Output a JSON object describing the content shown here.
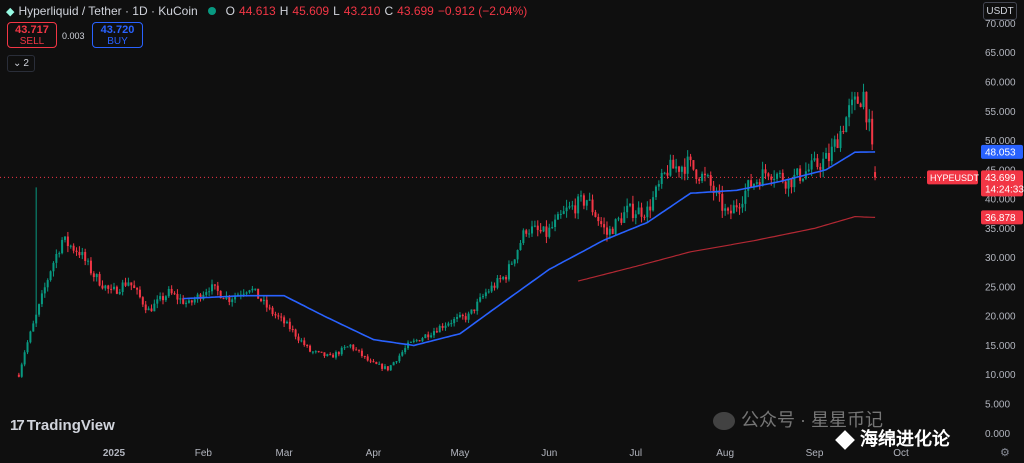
{
  "header": {
    "pair": "Hyperliquid / Tether · 1D · KuCoin",
    "open_label": "O",
    "open": "44.613",
    "high_label": "H",
    "high": "45.609",
    "low_label": "L",
    "low": "43.210",
    "close_label": "C",
    "close": "43.699",
    "change": "−0.912 (−2.04%)"
  },
  "trade": {
    "sell_price": "43.717",
    "sell_label": "SELL",
    "spread": "0.003",
    "buy_price": "43.720",
    "buy_label": "BUY"
  },
  "indicators": {
    "count": "2",
    "icon": "chevron-down-icon"
  },
  "currency": "USDT",
  "branding": {
    "logo_text": "TradingView"
  },
  "watermark": {
    "line1": "公众号 · 星星币记",
    "line2": "海绵进化论"
  },
  "colors": {
    "up": "#089981",
    "down": "#f23645",
    "ma_fast": "#2962ff",
    "ma_slow": "#b22833"
  },
  "chart_data": {
    "type": "candlestick",
    "y_ticks": [
      0,
      5,
      10,
      15,
      20,
      25,
      30,
      35,
      40,
      45,
      50,
      55,
      60,
      65,
      70
    ],
    "y_tick_labels": [
      "0.000",
      "5.000",
      "10.000",
      "15.000",
      "20.000",
      "25.000",
      "30.000",
      "35.000",
      "40.000",
      "45.000",
      "50.000",
      "55.000",
      "60.000",
      "65.000",
      "70.000"
    ],
    "ylim": [
      -2,
      74
    ],
    "x_labels": [
      {
        "label": "2025",
        "date": "2025-01-01",
        "bold": true
      },
      {
        "label": "Feb",
        "date": "2025-02-01"
      },
      {
        "label": "Mar",
        "date": "2025-03-01"
      },
      {
        "label": "Apr",
        "date": "2025-04-01"
      },
      {
        "label": "May",
        "date": "2025-05-01"
      },
      {
        "label": "Jun",
        "date": "2025-06-01"
      },
      {
        "label": "Jul",
        "date": "2025-07-01"
      },
      {
        "label": "Aug",
        "date": "2025-08-01"
      },
      {
        "label": "Sep",
        "date": "2025-09-01"
      },
      {
        "label": "Oct",
        "date": "2025-10-01"
      }
    ],
    "first_date": "2024-11-29",
    "last_date": "2025-09-22",
    "price_path": [
      [
        "2024-11-29",
        10
      ],
      [
        "2024-12-01",
        14
      ],
      [
        "2024-12-05",
        20
      ],
      [
        "2024-12-10",
        28
      ],
      [
        "2024-12-14",
        33
      ],
      [
        "2024-12-20",
        31
      ],
      [
        "2024-12-25",
        27
      ],
      [
        "2024-12-31",
        24
      ],
      [
        "2025-01-06",
        26
      ],
      [
        "2025-01-13",
        21
      ],
      [
        "2025-01-20",
        24
      ],
      [
        "2025-01-27",
        22
      ],
      [
        "2025-02-03",
        25
      ],
      [
        "2025-02-10",
        23
      ],
      [
        "2025-02-17",
        25
      ],
      [
        "2025-02-24",
        21
      ],
      [
        "2025-03-03",
        18
      ],
      [
        "2025-03-10",
        14
      ],
      [
        "2025-03-17",
        13
      ],
      [
        "2025-03-24",
        15
      ],
      [
        "2025-03-31",
        12
      ],
      [
        "2025-04-06",
        11
      ],
      [
        "2025-04-13",
        15
      ],
      [
        "2025-04-20",
        17
      ],
      [
        "2025-04-27",
        19
      ],
      [
        "2025-05-04",
        20
      ],
      [
        "2025-05-10",
        24
      ],
      [
        "2025-05-17",
        27
      ],
      [
        "2025-05-24",
        35
      ],
      [
        "2025-05-31",
        34
      ],
      [
        "2025-06-07",
        38
      ],
      [
        "2025-06-14",
        40
      ],
      [
        "2025-06-21",
        34
      ],
      [
        "2025-06-28",
        38
      ],
      [
        "2025-07-05",
        38
      ],
      [
        "2025-07-12",
        45
      ],
      [
        "2025-07-19",
        46
      ],
      [
        "2025-07-26",
        43
      ],
      [
        "2025-08-02",
        37
      ],
      [
        "2025-08-09",
        42
      ],
      [
        "2025-08-16",
        45
      ],
      [
        "2025-08-23",
        43
      ],
      [
        "2025-08-30",
        45
      ],
      [
        "2025-09-06",
        47
      ],
      [
        "2025-09-13",
        55
      ],
      [
        "2025-09-18",
        58
      ],
      [
        "2025-09-20",
        52
      ],
      [
        "2025-09-22",
        43.699
      ]
    ],
    "ma_fast_path": [
      [
        "2025-01-25",
        23
      ],
      [
        "2025-02-15",
        23.5
      ],
      [
        "2025-03-01",
        23.5
      ],
      [
        "2025-03-15",
        20
      ],
      [
        "2025-04-01",
        16
      ],
      [
        "2025-04-15",
        15
      ],
      [
        "2025-05-01",
        17
      ],
      [
        "2025-05-15",
        22
      ],
      [
        "2025-06-01",
        28
      ],
      [
        "2025-06-20",
        33
      ],
      [
        "2025-07-05",
        36
      ],
      [
        "2025-07-20",
        41
      ],
      [
        "2025-08-05",
        41.5
      ],
      [
        "2025-08-20",
        43
      ],
      [
        "2025-09-05",
        45
      ],
      [
        "2025-09-15",
        48
      ],
      [
        "2025-09-22",
        48.053
      ]
    ],
    "ma_slow_path": [
      [
        "2025-06-11",
        26
      ],
      [
        "2025-07-01",
        28.5
      ],
      [
        "2025-07-20",
        31
      ],
      [
        "2025-08-10",
        32.8
      ],
      [
        "2025-09-01",
        35
      ],
      [
        "2025-09-15",
        37
      ],
      [
        "2025-09-22",
        36.878
      ]
    ],
    "last_price_tag": {
      "symbol": "HYPEUSDT",
      "price": "43.699",
      "countdown": "14:24:33",
      "value": 43.699
    },
    "ma_fast_tag": {
      "label": "48.053",
      "value": 48.053
    },
    "ma_slow_tag": {
      "label": "36.878",
      "value": 36.878
    }
  }
}
